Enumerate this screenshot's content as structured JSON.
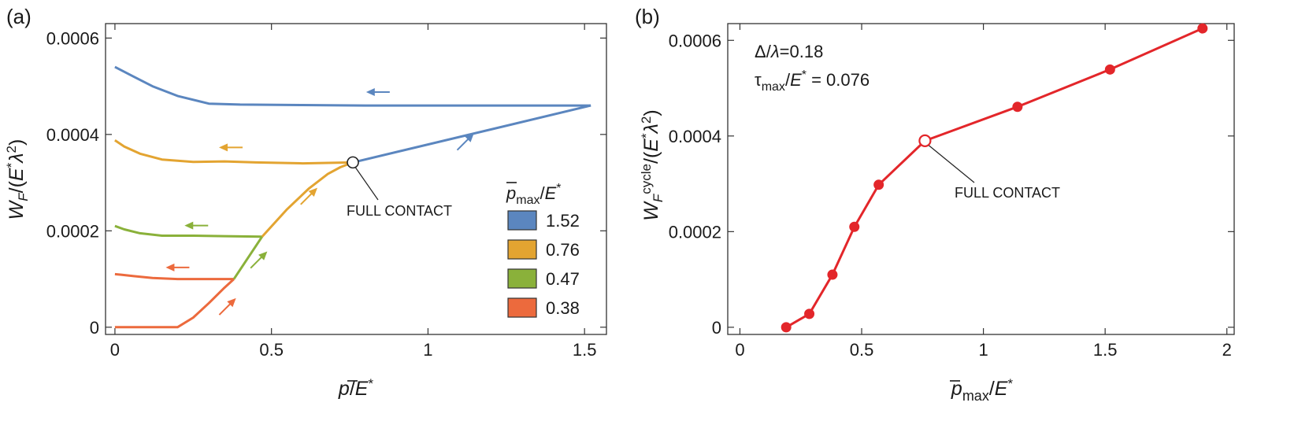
{
  "colors": {
    "blue": "#5b86bf",
    "orange": "#e3a431",
    "green": "#8ab13a",
    "red": "#ec6a3d",
    "panel_b": "#e3262a"
  },
  "chart_data": [
    {
      "type": "line",
      "panel_label": "(a)",
      "xlabel": "p̄/E*",
      "ylabel": "W_F/(E*λ²)",
      "xlim": [
        -0.03,
        1.57
      ],
      "ylim": [
        -1.5e-05,
        0.00063
      ],
      "x_ticks": [
        0,
        0.5,
        1,
        1.5
      ],
      "x_tick_labels": [
        "0",
        "0.5",
        "1",
        "1.5"
      ],
      "y_ticks": [
        0,
        0.0002,
        0.0004,
        0.0006
      ],
      "y_tick_labels": [
        "0",
        "0.0002",
        "0.0004",
        "0.0006"
      ],
      "grid": false,
      "legend": {
        "title": "p̄max/E*",
        "placement": "right",
        "entries": [
          "1.52",
          "0.76",
          "0.47",
          "0.38"
        ]
      },
      "annotation": {
        "text": "FULL CONTACT",
        "x": 0.76,
        "y": 0.000342
      },
      "series": [
        {
          "name": "1.52",
          "color_key": "blue",
          "loading": {
            "x": [
              0.76,
              1.52
            ],
            "y": [
              0.000342,
              0.00046
            ]
          },
          "unloading": {
            "x": [
              1.52,
              1.2,
              0.8,
              0.6,
              0.4,
              0.3,
              0.2,
              0.12,
              0.06,
              0
            ],
            "y": [
              0.00046,
              0.00046,
              0.00046,
              0.000461,
              0.000462,
              0.000464,
              0.00048,
              0.0005,
              0.00052,
              0.00054
            ]
          },
          "arrows": [
            {
              "x": 0.84,
              "y": 0.000488,
              "dir": "left"
            },
            {
              "x": 1.12,
              "y": 0.000385,
              "dir": "up-right"
            }
          ]
        },
        {
          "name": "0.76",
          "color_key": "orange",
          "loading": {
            "x": [
              0.47,
              0.55,
              0.62,
              0.68,
              0.72,
              0.76
            ],
            "y": [
              0.000188,
              0.000245,
              0.000288,
              0.000318,
              0.000332,
              0.000342
            ]
          },
          "unloading": {
            "x": [
              0.76,
              0.6,
              0.45,
              0.35,
              0.25,
              0.15,
              0.08,
              0.03,
              0
            ],
            "y": [
              0.000342,
              0.00034,
              0.000342,
              0.000344,
              0.000343,
              0.000348,
              0.00036,
              0.000375,
              0.000388
            ]
          },
          "arrows": [
            {
              "x": 0.37,
              "y": 0.000373,
              "dir": "left"
            },
            {
              "x": 0.62,
              "y": 0.000272,
              "dir": "up-right"
            }
          ]
        },
        {
          "name": "0.47",
          "color_key": "green",
          "loading": {
            "x": [
              0.38,
              0.47
            ],
            "y": [
              0.0001,
              0.000188
            ]
          },
          "unloading": {
            "x": [
              0.47,
              0.35,
              0.25,
              0.15,
              0.08,
              0.03,
              0
            ],
            "y": [
              0.000188,
              0.000189,
              0.00019,
              0.00019,
              0.000195,
              0.000203,
              0.00021
            ]
          },
          "arrows": [
            {
              "x": 0.26,
              "y": 0.000211,
              "dir": "left"
            },
            {
              "x": 0.46,
              "y": 0.00014,
              "dir": "up-right"
            }
          ]
        },
        {
          "name": "0.38",
          "color_key": "red",
          "loading": {
            "x": [
              0,
              0.2,
              0.25,
              0.3,
              0.35,
              0.38
            ],
            "y": [
              0,
              0,
              2e-05,
              5e-05,
              8.2e-05,
              0.0001
            ]
          },
          "unloading": {
            "x": [
              0.38,
              0.3,
              0.2,
              0.12,
              0.06,
              0.02,
              0
            ],
            "y": [
              0.0001,
              0.0001,
              0.0001,
              0.000102,
              0.000106,
              0.000109,
              0.00011
            ]
          },
          "arrows": [
            {
              "x": 0.2,
              "y": 0.000124,
              "dir": "left"
            },
            {
              "x": 0.36,
              "y": 4.3e-05,
              "dir": "up-right"
            }
          ]
        }
      ]
    },
    {
      "type": "line",
      "panel_label": "(b)",
      "xlabel": "p̄max/E*",
      "ylabel": "W_F^cycle/(E*λ²)",
      "xlim": [
        -0.05,
        2.03
      ],
      "ylim": [
        -1.5e-05,
        0.000635
      ],
      "x_ticks": [
        0,
        0.5,
        1,
        1.5,
        2
      ],
      "x_tick_labels": [
        "0",
        "0.5",
        "1",
        "1.5",
        "2"
      ],
      "y_ticks": [
        0,
        0.0002,
        0.0004,
        0.0006
      ],
      "y_tick_labels": [
        "0",
        "0.0002",
        "0.0004",
        "0.0006"
      ],
      "grid": false,
      "params": [
        "Δ/λ=0.18",
        "τmax/E* = 0.076"
      ],
      "annotation": {
        "text": "FULL CONTACT",
        "x": 0.76,
        "y": 0.00039
      },
      "series": [
        {
          "color_key": "panel_b",
          "x": [
            0.19,
            0.285,
            0.38,
            0.47,
            0.57,
            0.76,
            1.14,
            1.52,
            1.9
          ],
          "y": [
            0.0,
            2.8e-05,
            0.00011,
            0.00021,
            0.000298,
            0.00039,
            0.000461,
            0.000539,
            0.000625
          ],
          "open_marker_index": 5
        }
      ]
    }
  ]
}
